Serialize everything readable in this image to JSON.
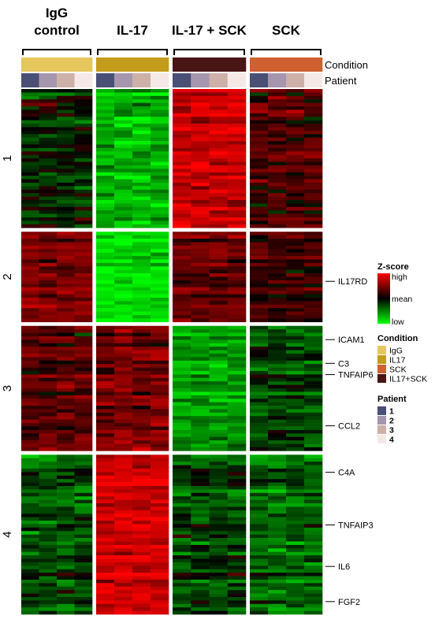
{
  "chart_data": {
    "type": "heatmap",
    "colorscale": {
      "low": "#00ff00",
      "mid": "#000000",
      "high": "#ff0000"
    },
    "zscore_legend": {
      "title": "Z-score",
      "high": "high",
      "mean": "mean",
      "low": "low"
    },
    "groups": [
      {
        "title_lines": [
          "IgG",
          "control"
        ],
        "condition": "IgG"
      },
      {
        "title_lines": [
          "IL-17"
        ],
        "condition": "IL17"
      },
      {
        "title_lines": [
          "IL-17 + SCK"
        ],
        "condition": "IL17+SCK"
      },
      {
        "title_lines": [
          "SCK"
        ],
        "condition": "SCK"
      }
    ],
    "annotation_rows": {
      "condition": "Condition",
      "patient": "Patient"
    },
    "condition_legend": {
      "title": "Condition",
      "items": [
        {
          "label": "IgG",
          "color": "#e6c75e"
        },
        {
          "label": "IL17",
          "color": "#c39c1b"
        },
        {
          "label": "SCK",
          "color": "#cf6030"
        },
        {
          "label": "IL17+SCK",
          "color": "#4a1515"
        }
      ]
    },
    "patient_legend": {
      "title": "Patient",
      "items": [
        {
          "label": "1",
          "color": "#4a5075"
        },
        {
          "label": "2",
          "color": "#a596ae"
        },
        {
          "label": "3",
          "color": "#cdb0a8"
        },
        {
          "label": "4",
          "color": "#f4e9e6"
        }
      ]
    },
    "clusters": [
      {
        "label": "1",
        "rows": 40,
        "profile": [
          -0.2,
          -1.6,
          1.8,
          0.6
        ],
        "noise": 0.9,
        "patient_jitter": 0.5
      },
      {
        "label": "2",
        "rows": 26,
        "profile": [
          1.0,
          -2.0,
          0.8,
          0.4
        ],
        "noise": 0.7,
        "patient_jitter": 0.4
      },
      {
        "label": "3",
        "rows": 36,
        "profile": [
          0.7,
          1.0,
          -1.3,
          -0.5
        ],
        "noise": 0.8,
        "patient_jitter": 0.4
      },
      {
        "label": "4",
        "rows": 46,
        "profile": [
          -0.6,
          1.9,
          -0.5,
          -0.8
        ],
        "noise": 0.8,
        "patient_jitter": 0.5
      }
    ],
    "gene_labels": [
      {
        "label": "IL17RD",
        "cluster": 2,
        "row_fraction": 0.55
      },
      {
        "label": "ICAM1",
        "cluster": 3,
        "row_fraction": 0.11
      },
      {
        "label": "C3",
        "cluster": 3,
        "row_fraction": 0.3
      },
      {
        "label": "TNFAIP6",
        "cluster": 3,
        "row_fraction": 0.39
      },
      {
        "label": "CCL2",
        "cluster": 3,
        "row_fraction": 0.8
      },
      {
        "label": "C4A",
        "cluster": 4,
        "row_fraction": 0.11
      },
      {
        "label": "TNFAIP3",
        "cluster": 4,
        "row_fraction": 0.44
      },
      {
        "label": "IL6",
        "cluster": 4,
        "row_fraction": 0.7
      },
      {
        "label": "FGF2",
        "cluster": 4,
        "row_fraction": 0.92
      }
    ]
  }
}
